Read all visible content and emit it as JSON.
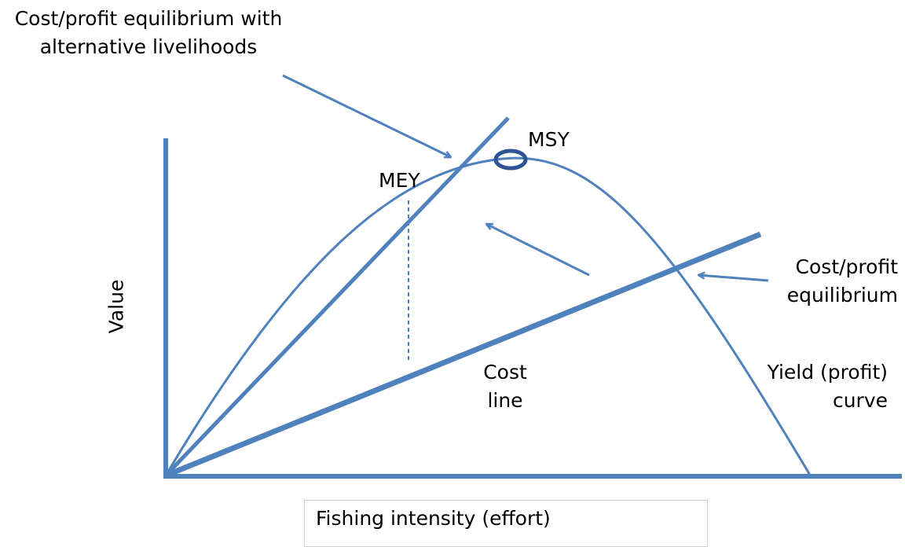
{
  "labels": {
    "alt_equilibrium_line1": "Cost/profit equilibrium with",
    "alt_equilibrium_line2": "alternative livelihoods",
    "msy": "MSY",
    "mey": "MEY",
    "equilibrium_line1": "Cost/profit",
    "equilibrium_line2": "equilibrium",
    "cost_line1": "Cost",
    "cost_line2": "line",
    "yield_line1": "Yield (profit)",
    "yield_line2": "curve",
    "y_axis": "Value",
    "x_axis": "Fishing intensity (effort)"
  },
  "colors": {
    "line": "#4f81bd",
    "msy_marker": "#2f5496"
  }
}
